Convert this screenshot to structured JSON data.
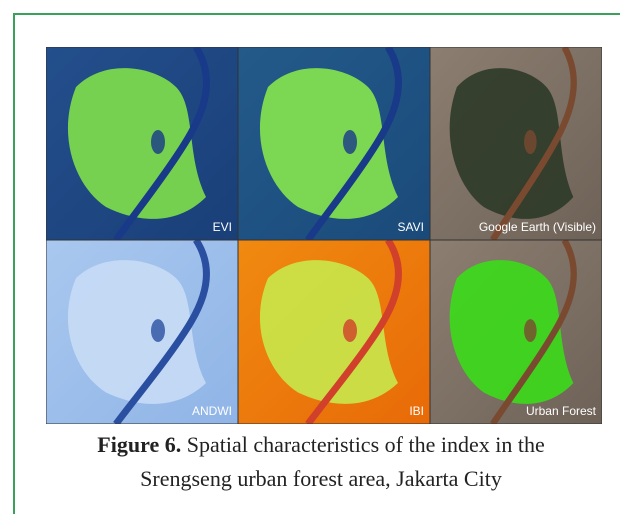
{
  "figure": {
    "panels": [
      {
        "label": "EVI"
      },
      {
        "label": "SAVI"
      },
      {
        "label": "Google Earth (Visible)"
      },
      {
        "label": "ANDWI"
      },
      {
        "label": "IBI"
      },
      {
        "label": "Urban Forest"
      }
    ],
    "caption": {
      "label": "Figure 6.",
      "text": "Spatial characteristics of the index in the Srengseng urban forest area, Jakarta City"
    }
  }
}
